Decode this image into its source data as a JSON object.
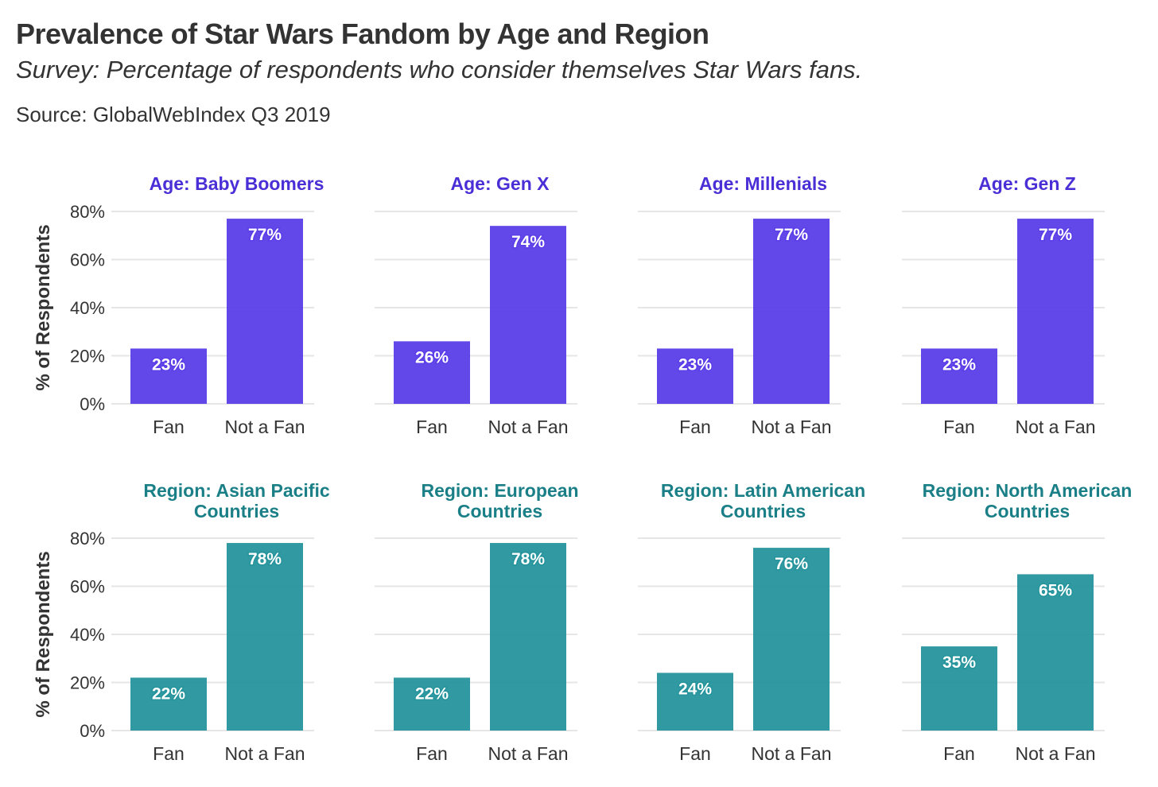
{
  "title": "Prevalence of Star Wars Fandom by Age and Region",
  "subtitle": "Survey: Percentage of respondents who consider themselves Star Wars fans.",
  "source": "Source: GlobalWebIndex Q3 2019",
  "colors": {
    "age": "#5b3ee8",
    "region": "#25949c",
    "age_title": "#4a2fd6",
    "region_title": "#1a7f86"
  },
  "chart_data": [
    {
      "type": "bar",
      "title": "Age: Baby Boomers",
      "group": "age",
      "categories": [
        "Fan",
        "Not a Fan"
      ],
      "values": [
        23,
        77
      ],
      "labels": [
        "23%",
        "77%"
      ],
      "ylabel": "% of Respondents",
      "yticks": [
        "0%",
        "20%",
        "40%",
        "60%",
        "80%"
      ],
      "ylim": [
        0,
        80
      ]
    },
    {
      "type": "bar",
      "title": "Age: Gen X",
      "group": "age",
      "categories": [
        "Fan",
        "Not a Fan"
      ],
      "values": [
        26,
        74
      ],
      "labels": [
        "26%",
        "74%"
      ],
      "ylim": [
        0,
        80
      ]
    },
    {
      "type": "bar",
      "title": "Age: Millenials",
      "group": "age",
      "categories": [
        "Fan",
        "Not a Fan"
      ],
      "values": [
        23,
        77
      ],
      "labels": [
        "23%",
        "77%"
      ],
      "ylim": [
        0,
        80
      ]
    },
    {
      "type": "bar",
      "title": "Age: Gen Z",
      "group": "age",
      "categories": [
        "Fan",
        "Not a Fan"
      ],
      "values": [
        23,
        77
      ],
      "labels": [
        "23%",
        "77%"
      ],
      "ylim": [
        0,
        80
      ]
    },
    {
      "type": "bar",
      "title": [
        "Region: Asian Pacific",
        "Countries"
      ],
      "group": "region",
      "categories": [
        "Fan",
        "Not a Fan"
      ],
      "values": [
        22,
        78
      ],
      "labels": [
        "22%",
        "78%"
      ],
      "ylabel": "% of Respondents",
      "yticks": [
        "0%",
        "20%",
        "40%",
        "60%",
        "80%"
      ],
      "ylim": [
        0,
        80
      ]
    },
    {
      "type": "bar",
      "title": [
        "Region: European",
        "Countries"
      ],
      "group": "region",
      "categories": [
        "Fan",
        "Not a Fan"
      ],
      "values": [
        22,
        78
      ],
      "labels": [
        "22%",
        "78%"
      ],
      "ylim": [
        0,
        80
      ]
    },
    {
      "type": "bar",
      "title": [
        "Region: Latin American",
        "Countries"
      ],
      "group": "region",
      "categories": [
        "Fan",
        "Not a Fan"
      ],
      "values": [
        24,
        76
      ],
      "labels": [
        "24%",
        "76%"
      ],
      "ylim": [
        0,
        80
      ]
    },
    {
      "type": "bar",
      "title": [
        "Region: North American",
        "Countries"
      ],
      "group": "region",
      "categories": [
        "Fan",
        "Not a Fan"
      ],
      "values": [
        35,
        65
      ],
      "labels": [
        "35%",
        "65%"
      ],
      "ylim": [
        0,
        80
      ]
    }
  ]
}
